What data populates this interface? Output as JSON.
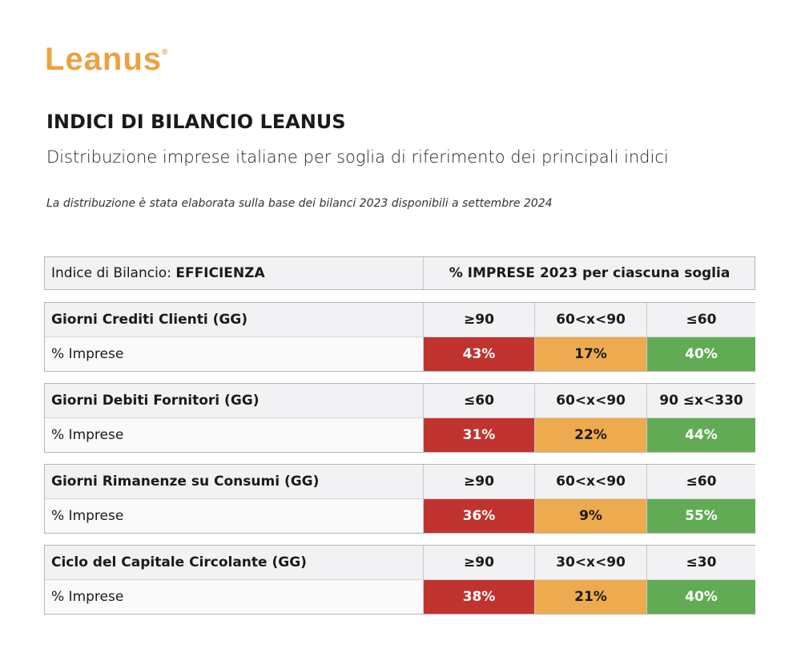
{
  "logo": {
    "text": "Leanus",
    "mark": "®"
  },
  "header": {
    "title": "INDICI DI BILANCIO LEANUS",
    "subtitle": "Distribuzione imprese italiane per soglia di riferimento dei principali indici",
    "note": "La distribuzione è stata elaborata sulla base dei bilanci 2023 disponibili a settembre 2024"
  },
  "table": {
    "header": {
      "label": "Indice di Bilancio:",
      "category": "EFFICIENZA",
      "columns_title": "% IMPRESE 2023 per ciascuna soglia"
    },
    "sections": [
      {
        "name": "Giorni Crediti Clienti (GG)",
        "thresholds": [
          "≥90",
          "60<x<90",
          "≤60"
        ],
        "row_label": "% Imprese",
        "values": [
          "43%",
          "17%",
          "40%"
        ]
      },
      {
        "name": "Giorni Debiti Fornitori (GG)",
        "thresholds": [
          "≤60",
          "60<x<90",
          "90 ≤x<330"
        ],
        "row_label": "% Imprese",
        "values": [
          "31%",
          "22%",
          "44%"
        ]
      },
      {
        "name": "Giorni Rimanenze su Consumi (GG)",
        "thresholds": [
          "≥90",
          "60<x<90",
          "≤60"
        ],
        "row_label": "% Imprese",
        "values": [
          "36%",
          "9%",
          "55%"
        ]
      },
      {
        "name": "Ciclo del Capitale Circolante  (GG)",
        "thresholds": [
          "≥90",
          "30<x<90",
          "≤30"
        ],
        "row_label": "% Imprese",
        "values": [
          "38%",
          "21%",
          "40%"
        ]
      }
    ]
  }
}
